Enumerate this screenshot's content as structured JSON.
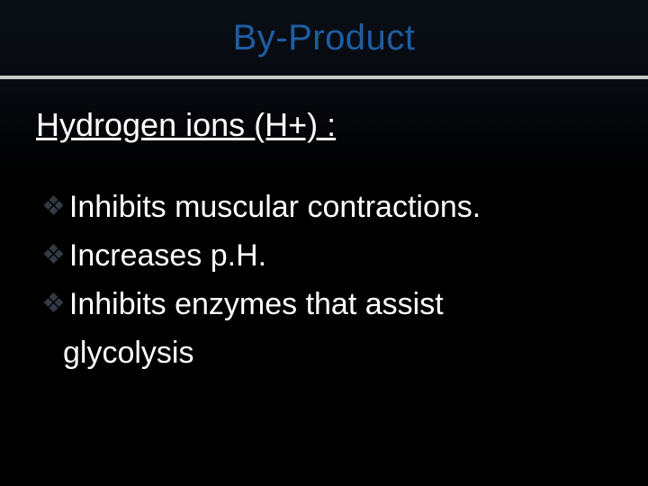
{
  "slide": {
    "title": "By-Product",
    "subtitle": "Hydrogen ions (H+) :",
    "bullets": [
      {
        "text": "Inhibits muscular contractions.",
        "space_after_icon": ""
      },
      {
        "text": " Increases p.H.",
        "space_after_icon": ""
      },
      {
        "text": " Inhibits enzymes that assist",
        "space_after_icon": ""
      }
    ],
    "wrap_line": "glycolysis"
  },
  "styling": {
    "background_color": "#000000",
    "title_bar_border_color": "#c8c8c8",
    "title_color": "#1f5da2",
    "text_color": "#ffffff",
    "bullet_icon_color": "#333a47",
    "title_fontsize": 40,
    "subtitle_fontsize": 36,
    "bullet_fontsize": 34
  }
}
